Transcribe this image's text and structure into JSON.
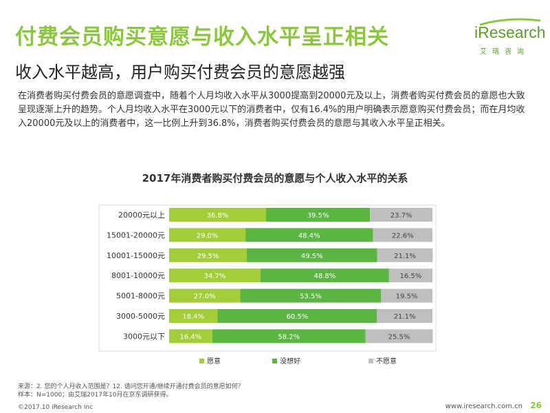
{
  "header": {
    "title": "付费会员购买意愿与收入水平呈正相关",
    "subtitle": "收入水平越高，用户购买付费会员的意愿越强"
  },
  "logo": {
    "brand": "iResearch",
    "sub": "艾瑞咨询"
  },
  "intro": "在消费者购买付费会员的意愿调查中，随着个人月均收入水平从3000提高到20000元及以上，消费者购买付费会员的意愿也大致呈现逐渐上升的趋势。个人月均收入水平在3000元以下的消费者中，仅有16.4%的用户明确表示愿意购买付费会员；而在月均收入20000元及以上的消费者中，这一比例上升到36.8%，消费者购买付费会员的意愿与其收入水平呈正相关。",
  "colors": {
    "willing": "#a3cd39",
    "unsure": "#5bb543",
    "unwilling": "#bfbfbf",
    "brand": "#8cc63f"
  },
  "chart_data": {
    "type": "bar",
    "orientation": "horizontal",
    "stacked": true,
    "title": "2017年消费者购买付费会员的意愿与个人收入水平的关系",
    "categories": [
      "20000元以上",
      "15001-20000元",
      "10001-15000元",
      "8001-10000元",
      "5001-8000元",
      "3000-5000元",
      "3000元以下"
    ],
    "series": [
      {
        "name": "愿意",
        "values": [
          36.8,
          29.0,
          29.5,
          34.7,
          27.0,
          18.4,
          16.4
        ]
      },
      {
        "name": "没想好",
        "values": [
          39.5,
          48.4,
          49.5,
          48.8,
          53.5,
          60.5,
          58.2
        ]
      },
      {
        "name": "不愿意",
        "values": [
          23.7,
          22.6,
          21.1,
          16.5,
          19.5,
          21.1,
          25.5
        ]
      }
    ],
    "value_labels": [
      [
        "36.8%",
        "39.5%",
        "23.7%"
      ],
      [
        "29.0%",
        "48.4%",
        "22.6%"
      ],
      [
        "29.5%",
        "49.5%",
        "21.1%"
      ],
      [
        "34.7%",
        "48.8%",
        "16.5%"
      ],
      [
        "27.0%",
        "53.5%",
        "19.5%"
      ],
      [
        "18.4%",
        "60.5%",
        "21.1%"
      ],
      [
        "16.4%",
        "58.2%",
        "25.5%"
      ]
    ],
    "legend": [
      "愿意",
      "没想好",
      "不愿意"
    ],
    "legend_position": "bottom",
    "xlim": [
      0,
      100
    ]
  },
  "notes": {
    "source": "来源：2. 您的个人月收入范围是？12. 请问您开通/继续开通付费会员的意愿如何？",
    "sample": "样本：N=1000；由艾瑞2017年10月在京东调研获得。"
  },
  "footer": {
    "copyright": "©2017.10 iResearch Inc",
    "url": "www.iresearch.com.cn",
    "page": "26"
  }
}
